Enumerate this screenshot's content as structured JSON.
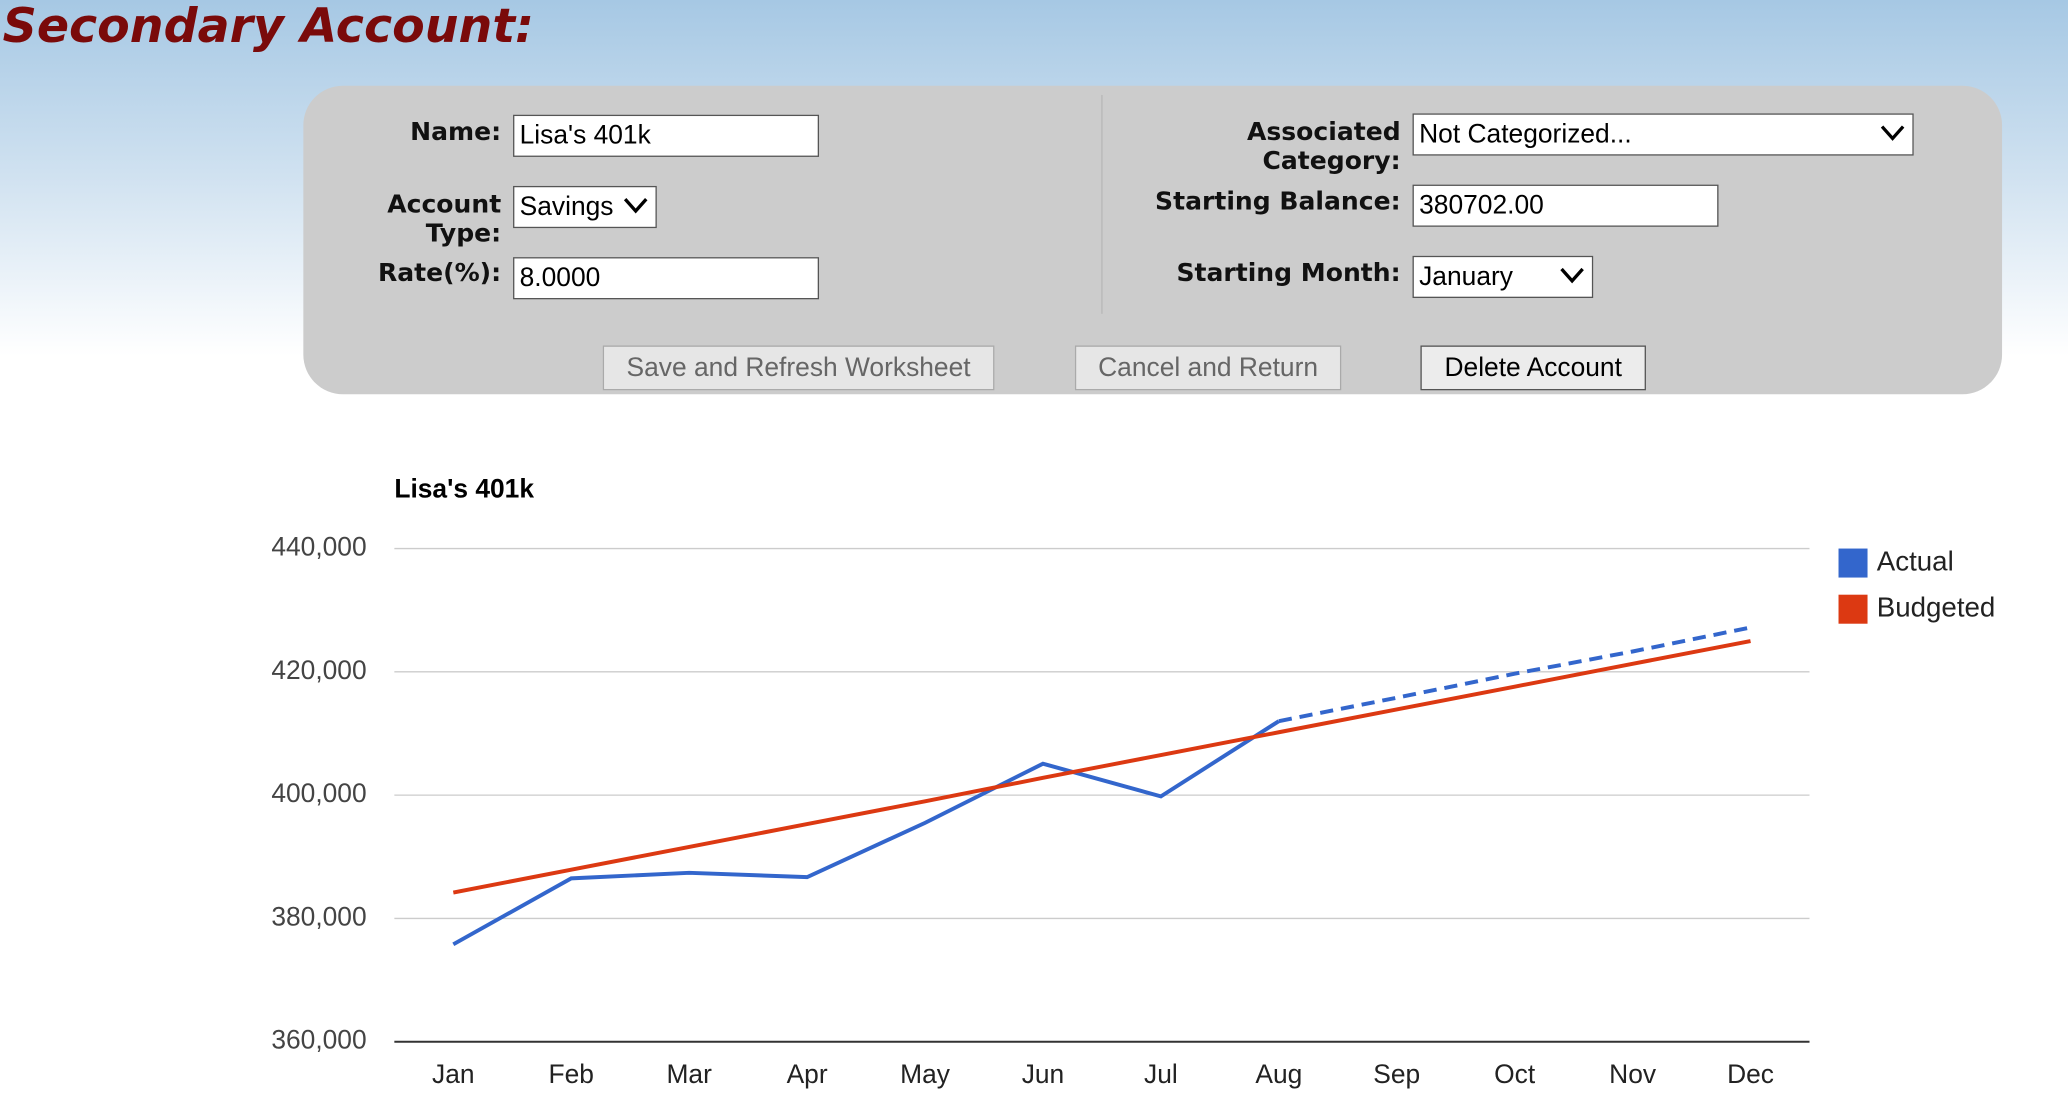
{
  "page": {
    "title": "Secondary Account:"
  },
  "form": {
    "name": {
      "label": "Name:",
      "value": "Lisa's 401k"
    },
    "account_type": {
      "label": "Account Type:",
      "value": "Savings"
    },
    "rate": {
      "label": "Rate(%):",
      "value": "8.0000"
    },
    "category": {
      "label": "Associated Category:",
      "value": "Not Categorized..."
    },
    "starting_balance": {
      "label": "Starting Balance:",
      "value": "380702.00"
    },
    "starting_month": {
      "label": "Starting Month:",
      "value": "January"
    },
    "buttons": [
      "Save and Refresh Worksheet",
      "Cancel and Return",
      "Delete Account"
    ]
  },
  "chart_data": {
    "type": "line",
    "title": "Lisa's 401k",
    "categories": [
      "Jan",
      "Feb",
      "Mar",
      "Apr",
      "May",
      "Jun",
      "Jul",
      "Aug",
      "Sep",
      "Oct",
      "Nov",
      "Dec"
    ],
    "series": [
      {
        "name": "Actual",
        "color": "#3366cc",
        "dashed_from": 7,
        "values": [
          375800,
          386500,
          387400,
          386700,
          395500,
          405100,
          399800,
          412000,
          415800,
          419700,
          423300,
          427200
        ]
      },
      {
        "name": "Budgeted",
        "color": "#dc3912",
        "values": [
          384200,
          387900,
          391600,
          395300,
          399000,
          402800,
          406500,
          410200,
          413900,
          417600,
          421300,
          425000
        ]
      }
    ],
    "ylim": [
      360000,
      440000
    ],
    "yticks": [
      {
        "value": 360000,
        "label": "360,000"
      },
      {
        "value": 380000,
        "label": "380,000"
      },
      {
        "value": 400000,
        "label": "400,000"
      },
      {
        "value": 420000,
        "label": "420,000"
      },
      {
        "value": 440000,
        "label": "440,000"
      }
    ],
    "grid": true,
    "legend": "right"
  }
}
